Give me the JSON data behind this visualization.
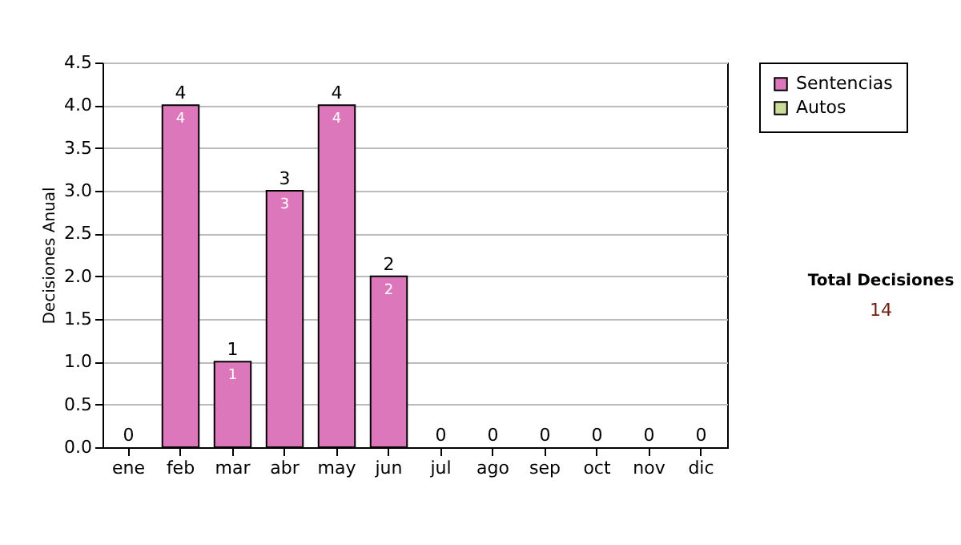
{
  "chart_data": {
    "type": "bar",
    "stacked": true,
    "ylabel": "Decisiones Anual",
    "categories": [
      "ene",
      "feb",
      "mar",
      "abr",
      "may",
      "jun",
      "jul",
      "ago",
      "sep",
      "oct",
      "nov",
      "dic"
    ],
    "series": [
      {
        "name": "Sentencias",
        "color": "#dd77bb",
        "values": [
          0,
          4,
          1,
          3,
          4,
          2,
          0,
          0,
          0,
          0,
          0,
          0
        ],
        "value_labels": [
          null,
          "4",
          "1",
          "3",
          "4",
          "2",
          null,
          null,
          null,
          null,
          null,
          null
        ]
      },
      {
        "name": "Autos",
        "color": "#ccdd99",
        "values": [
          0,
          0,
          0,
          0,
          0,
          0,
          0,
          0,
          0,
          0,
          0,
          0
        ]
      }
    ],
    "totals": [
      "0",
      "4",
      "1",
      "3",
      "4",
      "2",
      "0",
      "0",
      "0",
      "0",
      "0",
      "0"
    ],
    "ylim": [
      0,
      4.5
    ],
    "yticks": [
      {
        "value": 0,
        "label": "0.0"
      },
      0.5,
      {
        "value": 1,
        "label": "1.0"
      },
      1.5,
      {
        "value": 2,
        "label": "2.0"
      },
      2.5,
      {
        "value": 3,
        "label": "3.0"
      },
      3.5,
      {
        "value": 4,
        "label": "4.0"
      },
      4.5
    ],
    "grid": "y",
    "legend": "right",
    "annotations": [
      "Total Decisiones",
      "14"
    ]
  }
}
